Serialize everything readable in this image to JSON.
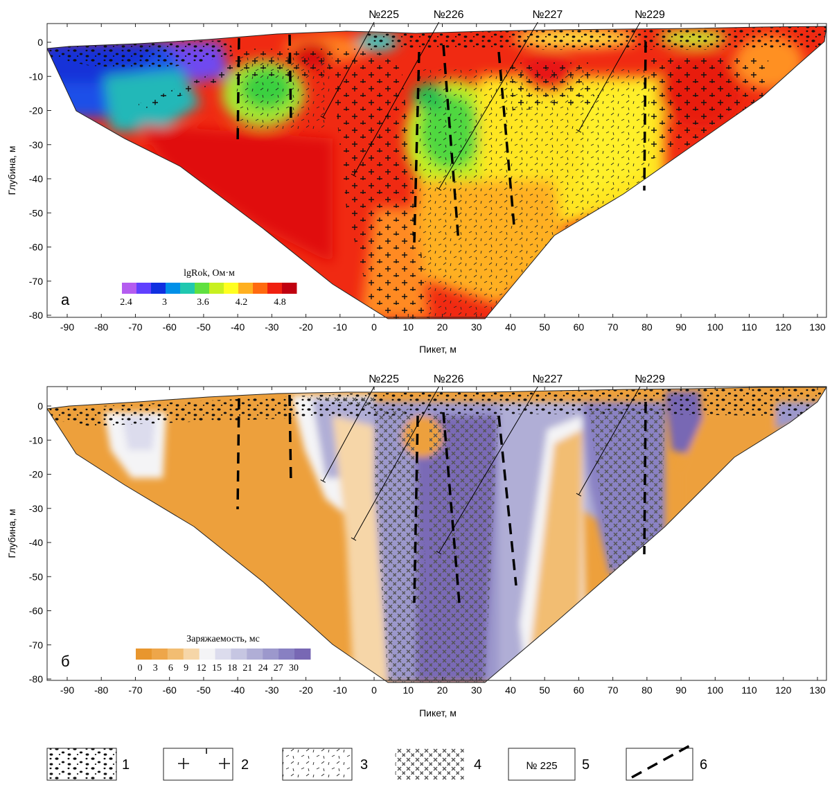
{
  "panels": [
    {
      "letter": "а",
      "ylabel": "Глубина, м",
      "xlabel": "Пикет, м",
      "colorbar_title": "lgRok, Ом·м",
      "colorbar_ticks": [
        "2.4",
        "3",
        "3.6",
        "4.2",
        "4.8"
      ],
      "colorbar_colors": [
        "#b45cf0",
        "#6040ff",
        "#1030e0",
        "#0090e8",
        "#20c8b0",
        "#60e040",
        "#c8f020",
        "#ffff20",
        "#ffb020",
        "#ff6a10",
        "#f02010",
        "#c00010"
      ]
    },
    {
      "letter": "б",
      "ylabel": "Глубина, м",
      "xlabel": "Пикет, м",
      "colorbar_title": "Заряжаемость, мс",
      "colorbar_ticks": [
        "0",
        "3",
        "6",
        "9",
        "12",
        "15",
        "18",
        "21",
        "24",
        "27",
        "30"
      ],
      "colorbar_colors": [
        "#e8962e",
        "#eea64a",
        "#f2bd72",
        "#f6d6a8",
        "#f4f4f6",
        "#dcdced",
        "#c6c6e2",
        "#b0aed6",
        "#9c98cc",
        "#8880c2",
        "#7868b4"
      ]
    }
  ],
  "x_ticks": [
    "-90",
    "-80",
    "-70",
    "-60",
    "-50",
    "-40",
    "-30",
    "-20",
    "-10",
    "0",
    "10",
    "20",
    "30",
    "40",
    "50",
    "60",
    "70",
    "80",
    "90",
    "100",
    "110",
    "120",
    "130"
  ],
  "y_ticks": [
    "0",
    "-10",
    "-20",
    "-30",
    "-40",
    "-50",
    "-60",
    "-70",
    "-80"
  ],
  "boreholes": [
    {
      "label": "№225",
      "top_x": 0,
      "bottom_x": -15,
      "bottom_depth": -22
    },
    {
      "label": "№226",
      "top_x": 19,
      "bottom_x": -6,
      "bottom_depth": -39
    },
    {
      "label": "№227",
      "top_x": 48,
      "bottom_x": 19,
      "bottom_depth": -43
    },
    {
      "label": "№229",
      "top_x": 78,
      "bottom_x": 60,
      "bottom_depth": -26
    }
  ],
  "legend": [
    {
      "number": "1",
      "pattern": "pebbles-icon"
    },
    {
      "number": "2",
      "pattern": "crosses-icon"
    },
    {
      "number": "3",
      "pattern": "dashes-icon"
    },
    {
      "number": "4",
      "pattern": "crosshatch-icon"
    },
    {
      "number": "5",
      "box_text": "№ 225"
    },
    {
      "number": "6",
      "pattern": "dashed-line-icon"
    }
  ],
  "colors": {
    "frame": "#222222",
    "fault": "#000000",
    "borehole": "#000000"
  }
}
